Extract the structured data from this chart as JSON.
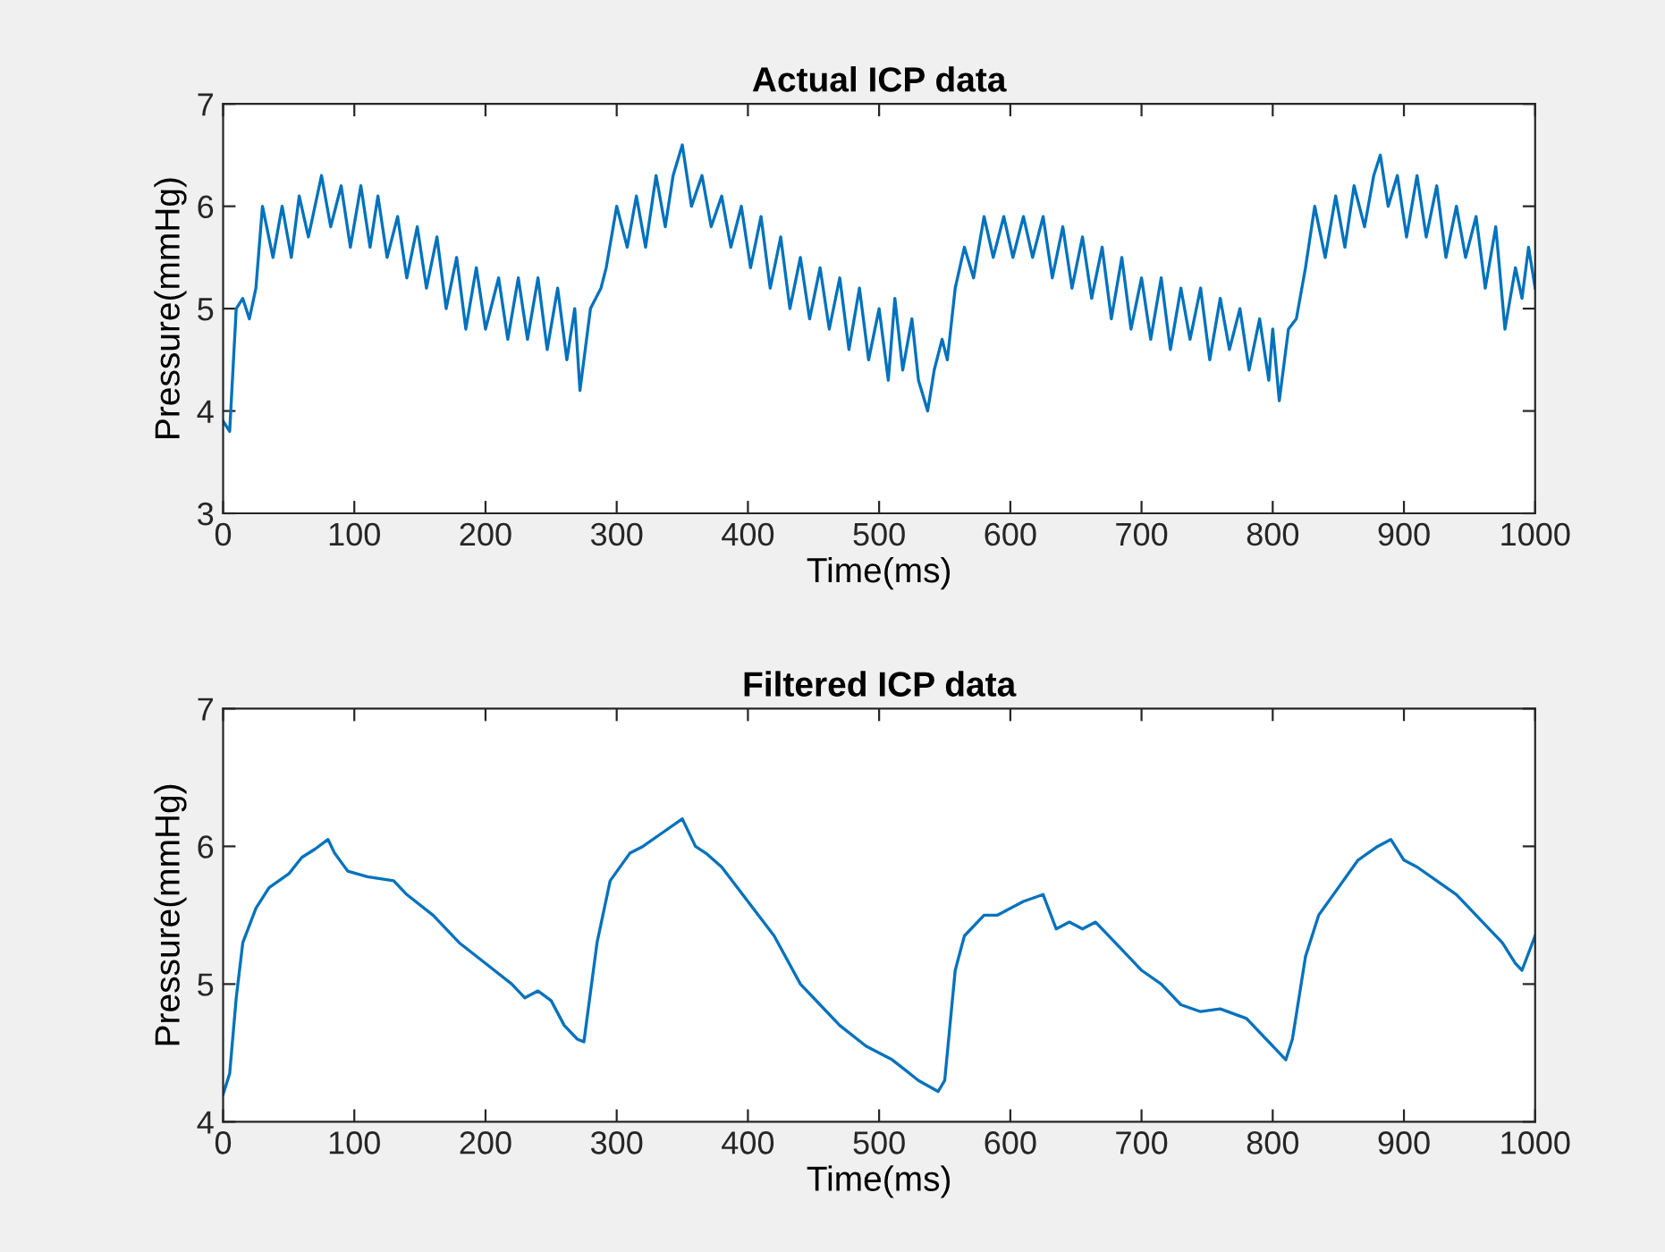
{
  "chart_data": [
    {
      "type": "line",
      "title": "Actual ICP data",
      "xlabel": "Time(ms)",
      "ylabel": "Pressure(mmHg)",
      "xlim": [
        0,
        1000
      ],
      "ylim": [
        3,
        7
      ],
      "xticks": [
        0,
        100,
        200,
        300,
        400,
        500,
        600,
        700,
        800,
        900,
        1000
      ],
      "yticks": [
        3,
        4,
        5,
        6,
        7
      ],
      "series": [
        {
          "color": "#0072bd",
          "x": [
            0,
            5,
            10,
            15,
            20,
            25,
            30,
            38,
            45,
            52,
            58,
            65,
            75,
            82,
            90,
            97,
            105,
            112,
            118,
            125,
            133,
            140,
            148,
            155,
            163,
            170,
            178,
            185,
            193,
            200,
            210,
            217,
            225,
            232,
            240,
            247,
            255,
            262,
            268,
            272,
            280,
            288,
            292,
            300,
            308,
            315,
            322,
            330,
            337,
            343,
            350,
            357,
            365,
            372,
            380,
            387,
            395,
            402,
            410,
            417,
            425,
            432,
            440,
            447,
            455,
            462,
            470,
            477,
            485,
            492,
            500,
            507,
            512,
            518,
            525,
            530,
            537,
            542,
            548,
            552,
            558,
            565,
            572,
            580,
            587,
            595,
            602,
            610,
            617,
            625,
            632,
            640,
            647,
            655,
            662,
            670,
            677,
            685,
            692,
            700,
            707,
            715,
            722,
            730,
            737,
            745,
            752,
            760,
            767,
            775,
            782,
            790,
            797,
            800,
            805,
            812,
            818,
            825,
            832,
            840,
            848,
            855,
            862,
            870,
            877,
            882,
            888,
            895,
            902,
            910,
            917,
            925,
            932,
            940,
            947,
            955,
            962,
            970,
            977,
            985,
            990,
            995,
            1000
          ],
          "values": [
            3.9,
            3.8,
            5.0,
            5.1,
            4.9,
            5.2,
            6.0,
            5.5,
            6.0,
            5.5,
            6.1,
            5.7,
            6.3,
            5.8,
            6.2,
            5.6,
            6.2,
            5.6,
            6.1,
            5.5,
            5.9,
            5.3,
            5.8,
            5.2,
            5.7,
            5.0,
            5.5,
            4.8,
            5.4,
            4.8,
            5.3,
            4.7,
            5.3,
            4.7,
            5.3,
            4.6,
            5.2,
            4.5,
            5.0,
            4.2,
            5.0,
            5.2,
            5.4,
            6.0,
            5.6,
            6.1,
            5.6,
            6.3,
            5.8,
            6.3,
            6.6,
            6.0,
            6.3,
            5.8,
            6.1,
            5.6,
            6.0,
            5.4,
            5.9,
            5.2,
            5.7,
            5.0,
            5.5,
            4.9,
            5.4,
            4.8,
            5.3,
            4.6,
            5.2,
            4.5,
            5.0,
            4.3,
            5.1,
            4.4,
            4.9,
            4.3,
            4.0,
            4.4,
            4.7,
            4.5,
            5.2,
            5.6,
            5.3,
            5.9,
            5.5,
            5.9,
            5.5,
            5.9,
            5.5,
            5.9,
            5.3,
            5.8,
            5.2,
            5.7,
            5.1,
            5.6,
            4.9,
            5.5,
            4.8,
            5.3,
            4.7,
            5.3,
            4.6,
            5.2,
            4.7,
            5.2,
            4.5,
            5.1,
            4.6,
            5.0,
            4.4,
            4.9,
            4.3,
            4.8,
            4.1,
            4.8,
            4.9,
            5.4,
            6.0,
            5.5,
            6.1,
            5.6,
            6.2,
            5.8,
            6.3,
            6.5,
            6.0,
            6.3,
            5.7,
            6.3,
            5.7,
            6.2,
            5.5,
            6.0,
            5.5,
            5.9,
            5.2,
            5.8,
            4.8,
            5.4,
            5.1,
            5.6,
            5.2
          ]
        }
      ]
    },
    {
      "type": "line",
      "title": "Filtered ICP data",
      "xlabel": "Time(ms)",
      "ylabel": "Pressure(mmHg)",
      "xlim": [
        0,
        1000
      ],
      "ylim": [
        4,
        7
      ],
      "xticks": [
        0,
        100,
        200,
        300,
        400,
        500,
        600,
        700,
        800,
        900,
        1000
      ],
      "yticks": [
        4,
        5,
        6,
        7
      ],
      "series": [
        {
          "color": "#0072bd",
          "x": [
            0,
            5,
            10,
            15,
            25,
            35,
            50,
            60,
            70,
            80,
            85,
            95,
            110,
            130,
            140,
            160,
            180,
            200,
            220,
            230,
            240,
            250,
            260,
            270,
            275,
            285,
            295,
            310,
            320,
            335,
            350,
            360,
            368,
            380,
            400,
            420,
            440,
            455,
            470,
            490,
            510,
            530,
            545,
            550,
            558,
            565,
            580,
            590,
            610,
            625,
            635,
            645,
            655,
            665,
            680,
            700,
            715,
            730,
            745,
            760,
            780,
            795,
            805,
            810,
            815,
            825,
            835,
            850,
            865,
            880,
            890,
            900,
            910,
            925,
            940,
            960,
            975,
            985,
            990,
            1000
          ],
          "values": [
            4.2,
            4.35,
            4.9,
            5.3,
            5.55,
            5.7,
            5.8,
            5.92,
            5.98,
            6.05,
            5.95,
            5.82,
            5.78,
            5.75,
            5.65,
            5.5,
            5.3,
            5.15,
            5.0,
            4.9,
            4.95,
            4.88,
            4.7,
            4.6,
            4.58,
            5.3,
            5.75,
            5.95,
            6.0,
            6.1,
            6.2,
            6.0,
            5.95,
            5.85,
            5.6,
            5.35,
            5.0,
            4.85,
            4.7,
            4.55,
            4.45,
            4.3,
            4.22,
            4.3,
            5.1,
            5.35,
            5.5,
            5.5,
            5.6,
            5.65,
            5.4,
            5.45,
            5.4,
            5.45,
            5.3,
            5.1,
            5.0,
            4.85,
            4.8,
            4.82,
            4.75,
            4.6,
            4.5,
            4.45,
            4.6,
            5.2,
            5.5,
            5.7,
            5.9,
            6.0,
            6.05,
            5.9,
            5.85,
            5.75,
            5.65,
            5.45,
            5.3,
            5.15,
            5.1,
            5.35
          ]
        }
      ]
    }
  ]
}
